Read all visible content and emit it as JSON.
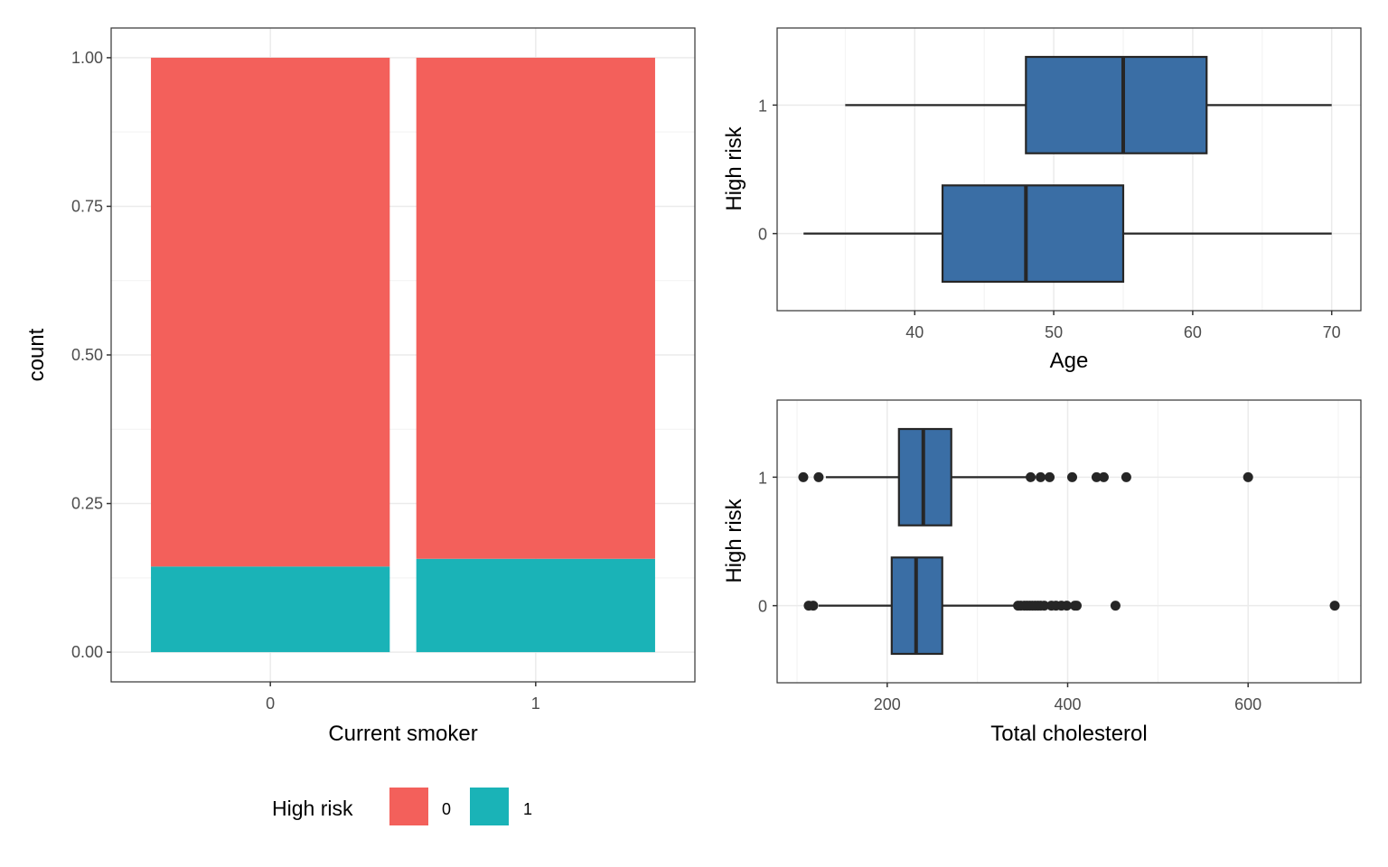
{
  "chart_data": [
    {
      "id": "smoker-bar",
      "type": "bar",
      "stacked": true,
      "position": "fill",
      "title": "",
      "xlabel": "Current smoker",
      "ylabel": "count",
      "categories": [
        "0",
        "1"
      ],
      "series": [
        {
          "name": "0",
          "color": "#F3605B",
          "values": [
            0.856,
            0.843
          ]
        },
        {
          "name": "1",
          "color": "#1AB3B7",
          "values": [
            0.144,
            0.157
          ]
        }
      ],
      "ylim": [
        -0.05,
        1.05
      ],
      "yticks": [
        0.0,
        0.25,
        0.5,
        0.75,
        1.0
      ],
      "ytick_labels": [
        "0.00",
        "0.25",
        "0.50",
        "0.75",
        "1.00"
      ],
      "grid": true,
      "legend": {
        "title": "High risk",
        "placement": "bottom",
        "entries": [
          {
            "label": "0",
            "color": "#F3605B"
          },
          {
            "label": "1",
            "color": "#1AB3B7"
          }
        ]
      }
    },
    {
      "id": "age-box",
      "type": "boxplot",
      "orientation": "horizontal",
      "xlabel": "Age",
      "ylabel": "High risk",
      "categories": [
        "0",
        "1"
      ],
      "fill": "#3A6EA5",
      "boxes": [
        {
          "group": "0",
          "whisker_low": 32,
          "q1": 42,
          "median": 48,
          "q3": 55,
          "whisker_high": 70,
          "outliers": []
        },
        {
          "group": "1",
          "whisker_low": 35,
          "q1": 48,
          "median": 55,
          "q3": 61,
          "whisker_high": 70,
          "outliers": []
        }
      ],
      "xlim": [
        30.1,
        72.1
      ],
      "xticks": [
        40,
        50,
        60,
        70
      ],
      "xtick_labels": [
        "40",
        "50",
        "60",
        "70"
      ],
      "grid": true
    },
    {
      "id": "chol-box",
      "type": "boxplot",
      "orientation": "horizontal",
      "xlabel": "Total cholesterol",
      "ylabel": "High risk",
      "categories": [
        "0",
        "1"
      ],
      "fill": "#3A6EA5",
      "boxes": [
        {
          "group": "0",
          "whisker_low": 124,
          "q1": 205,
          "median": 232,
          "q3": 261,
          "whisker_high": 343,
          "outliers": [
            113,
            118,
            345,
            348,
            352,
            355,
            358,
            361,
            364,
            367,
            370,
            374,
            382,
            387,
            393,
            399,
            408,
            410,
            453,
            696
          ]
        },
        {
          "group": "1",
          "whisker_low": 132,
          "q1": 213,
          "median": 240,
          "q3": 271,
          "whisker_high": 355,
          "outliers": [
            107,
            124,
            359,
            370,
            380,
            405,
            432,
            440,
            465,
            600
          ]
        }
      ],
      "xlim": [
        78,
        725
      ],
      "xticks": [
        200,
        400,
        600
      ],
      "xtick_labels": [
        "200",
        "400",
        "600"
      ],
      "grid": true
    }
  ]
}
